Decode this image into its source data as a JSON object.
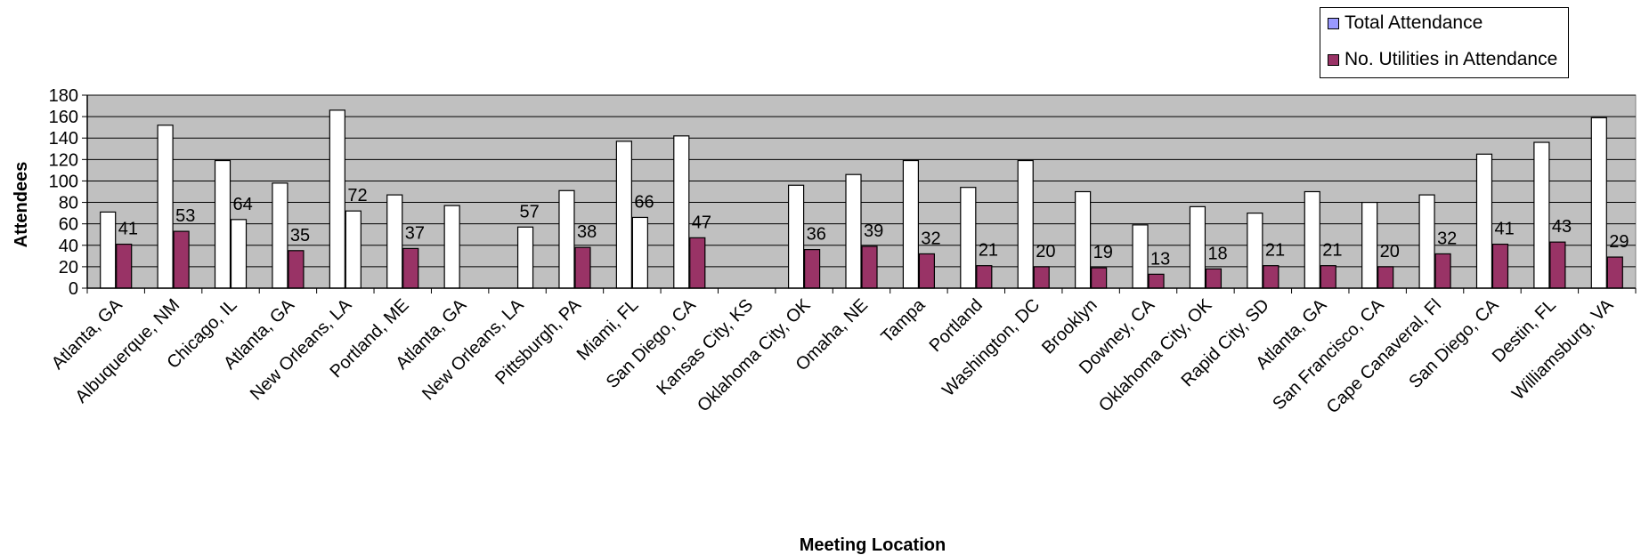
{
  "chart_data": {
    "type": "bar",
    "title": "",
    "xlabel": "Meeting Location",
    "ylabel": "Attendees",
    "ylim": [
      0,
      180
    ],
    "yticks": [
      0,
      20,
      40,
      60,
      80,
      100,
      120,
      140,
      160,
      180
    ],
    "grid": true,
    "legend_position": "top-right",
    "categories": [
      "Atlanta, GA",
      "Albuquerque, NM",
      "Chicago, IL",
      "Atlanta, GA",
      "New Orleans, LA",
      "Portland, ME",
      "Atlanta, GA",
      "New Orleans, LA",
      "Pittsburgh, PA",
      "Miami, FL",
      "San Diego, CA",
      "Kansas City, KS",
      "Oklahoma City, OK",
      "Omaha, NE",
      "Tampa",
      "Portland",
      "Washington, DC",
      "Brooklyn",
      "Downey, CA",
      "Oklahoma City, OK",
      "Rapid City, SD",
      "Atlanta, GA",
      "San Francisco, CA",
      "Cape Canaveral, Fl",
      "San Diego, CA",
      "Destin, FL",
      "Williamsburg, VA"
    ],
    "series": [
      {
        "name": "Total Attendance",
        "color": "#ffffff",
        "legend_color": "#9999ff",
        "values": [
          71,
          152,
          119,
          98,
          166,
          87,
          77,
          null,
          91,
          137,
          142,
          null,
          96,
          106,
          119,
          94,
          119,
          90,
          59,
          76,
          70,
          90,
          80,
          87,
          125,
          136,
          159
        ]
      },
      {
        "name": "No. Utilities in Attendance",
        "color": "#993366",
        "legend_color": "#993366",
        "values": [
          41,
          53,
          64,
          35,
          72,
          37,
          null,
          57,
          38,
          66,
          47,
          null,
          36,
          39,
          32,
          21,
          20,
          19,
          13,
          18,
          21,
          21,
          20,
          32,
          41,
          43,
          29
        ],
        "rendered_style": [
          "filled",
          "filled",
          "outline",
          "filled",
          "outline",
          "filled",
          "filled",
          "outline",
          "filled",
          "outline",
          "filled",
          "filled",
          "filled",
          "filled",
          "filled",
          "filled",
          "filled",
          "filled",
          "filled",
          "filled",
          "filled",
          "filled",
          "filled",
          "filled",
          "filled",
          "filled",
          "filled"
        ]
      }
    ],
    "colors": {
      "plot_background": "#c0c0c0",
      "gridline": "#000000",
      "axis": "#000000",
      "text": "#000000"
    }
  }
}
